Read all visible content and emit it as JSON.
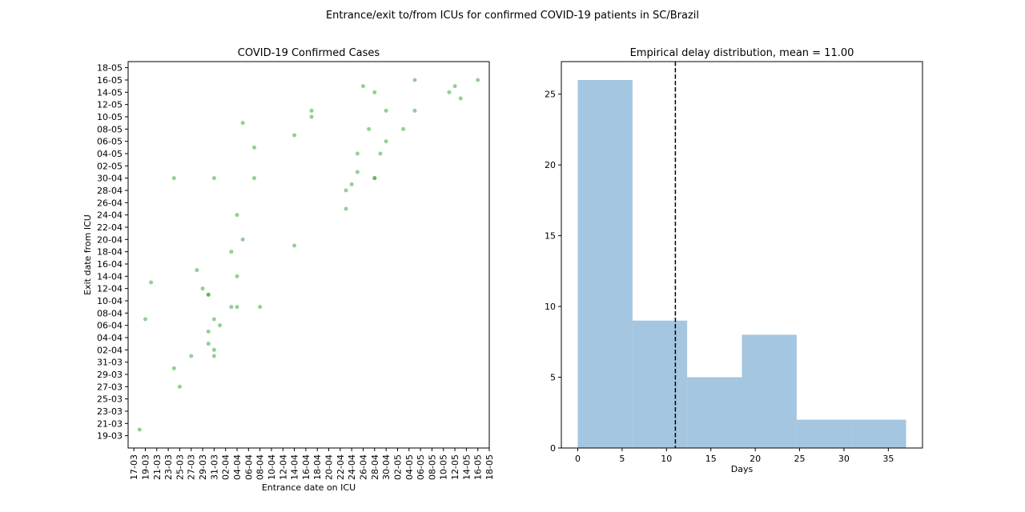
{
  "suptitle": "Entrance/exit to/from ICUs for confirmed COVID-19 patients in SC/Brazil",
  "chart_data": [
    {
      "type": "scatter",
      "title": "COVID-19 Confirmed Cases",
      "xlabel": "Entrance date on ICU",
      "ylabel": "Exit date from ICU",
      "x_ticks": [
        "17-03",
        "19-03",
        "21-03",
        "23-03",
        "25-03",
        "27-03",
        "29-03",
        "31-03",
        "02-04",
        "04-04",
        "06-04",
        "08-04",
        "10-04",
        "12-04",
        "14-04",
        "16-04",
        "18-04",
        "20-04",
        "22-04",
        "24-04",
        "26-04",
        "28-04",
        "30-04",
        "02-05",
        "04-05",
        "06-05",
        "08-05",
        "10-05",
        "12-05",
        "14-05",
        "16-05",
        "18-05"
      ],
      "y_ticks": [
        "19-03",
        "21-03",
        "23-03",
        "25-03",
        "27-03",
        "29-03",
        "31-03",
        "02-04",
        "04-04",
        "06-04",
        "08-04",
        "10-04",
        "12-04",
        "14-04",
        "16-04",
        "18-04",
        "20-04",
        "22-04",
        "24-04",
        "26-04",
        "28-04",
        "30-04",
        "02-05",
        "04-05",
        "06-05",
        "08-05",
        "10-05",
        "12-05",
        "14-05",
        "16-05",
        "18-05"
      ],
      "xlim": [
        "16-03",
        "18-05"
      ],
      "ylim": [
        "17-03",
        "19-05"
      ],
      "grid": false,
      "color": "#2ca02c",
      "points": [
        {
          "x": "18-03",
          "y": "20-03"
        },
        {
          "x": "19-03",
          "y": "07-04"
        },
        {
          "x": "20-03",
          "y": "13-04"
        },
        {
          "x": "24-03",
          "y": "30-03"
        },
        {
          "x": "24-03",
          "y": "30-04"
        },
        {
          "x": "25-03",
          "y": "27-03"
        },
        {
          "x": "27-03",
          "y": "01-04"
        },
        {
          "x": "28-03",
          "y": "15-04"
        },
        {
          "x": "29-03",
          "y": "12-04"
        },
        {
          "x": "30-03",
          "y": "11-04"
        },
        {
          "x": "30-03",
          "y": "11-04"
        },
        {
          "x": "30-03",
          "y": "05-04"
        },
        {
          "x": "30-03",
          "y": "03-04"
        },
        {
          "x": "31-03",
          "y": "07-04"
        },
        {
          "x": "31-03",
          "y": "02-04"
        },
        {
          "x": "31-03",
          "y": "01-04"
        },
        {
          "x": "31-03",
          "y": "30-04"
        },
        {
          "x": "01-04",
          "y": "06-04"
        },
        {
          "x": "03-04",
          "y": "18-04"
        },
        {
          "x": "03-04",
          "y": "09-04"
        },
        {
          "x": "04-04",
          "y": "09-04"
        },
        {
          "x": "04-04",
          "y": "14-04"
        },
        {
          "x": "04-04",
          "y": "24-04"
        },
        {
          "x": "05-04",
          "y": "20-04"
        },
        {
          "x": "05-04",
          "y": "09-05"
        },
        {
          "x": "07-04",
          "y": "30-04"
        },
        {
          "x": "07-04",
          "y": "05-05"
        },
        {
          "x": "08-04",
          "y": "09-04"
        },
        {
          "x": "14-04",
          "y": "19-04"
        },
        {
          "x": "14-04",
          "y": "07-05"
        },
        {
          "x": "17-04",
          "y": "10-05"
        },
        {
          "x": "17-04",
          "y": "11-05"
        },
        {
          "x": "23-04",
          "y": "25-04"
        },
        {
          "x": "23-04",
          "y": "28-04"
        },
        {
          "x": "24-04",
          "y": "29-04"
        },
        {
          "x": "25-04",
          "y": "01-05"
        },
        {
          "x": "25-04",
          "y": "04-05"
        },
        {
          "x": "26-04",
          "y": "15-05"
        },
        {
          "x": "27-04",
          "y": "08-05"
        },
        {
          "x": "28-04",
          "y": "30-04"
        },
        {
          "x": "28-04",
          "y": "30-04"
        },
        {
          "x": "28-04",
          "y": "14-05"
        },
        {
          "x": "29-04",
          "y": "04-05"
        },
        {
          "x": "30-04",
          "y": "06-05"
        },
        {
          "x": "30-04",
          "y": "11-05"
        },
        {
          "x": "03-05",
          "y": "08-05"
        },
        {
          "x": "05-05",
          "y": "11-05"
        },
        {
          "x": "05-05",
          "y": "16-05"
        },
        {
          "x": "11-05",
          "y": "14-05"
        },
        {
          "x": "12-05",
          "y": "15-05"
        },
        {
          "x": "13-05",
          "y": "13-05"
        },
        {
          "x": "16-05",
          "y": "16-05"
        }
      ]
    },
    {
      "type": "histogram",
      "title": "Empirical delay distribution, mean = 11.00",
      "xlabel": "Days",
      "ylabel": "",
      "bins": [
        {
          "start": 0,
          "end": 6.17,
          "count": 26
        },
        {
          "start": 6.17,
          "end": 12.33,
          "count": 9
        },
        {
          "start": 12.33,
          "end": 18.5,
          "count": 5
        },
        {
          "start": 18.5,
          "end": 24.67,
          "count": 8
        },
        {
          "start": 24.67,
          "end": 30.83,
          "count": 2
        },
        {
          "start": 30.83,
          "end": 37,
          "count": 2
        }
      ],
      "mean": 11.0,
      "xlim": [
        -1.85,
        38.85
      ],
      "ylim": [
        0,
        27.3
      ],
      "x_ticks": [
        0,
        5,
        10,
        15,
        20,
        25,
        30,
        35
      ],
      "y_ticks": [
        0,
        5,
        10,
        15,
        20,
        25
      ],
      "grid": false,
      "bar_color": "#a4c6e0",
      "mean_line_color": "#000000"
    }
  ]
}
